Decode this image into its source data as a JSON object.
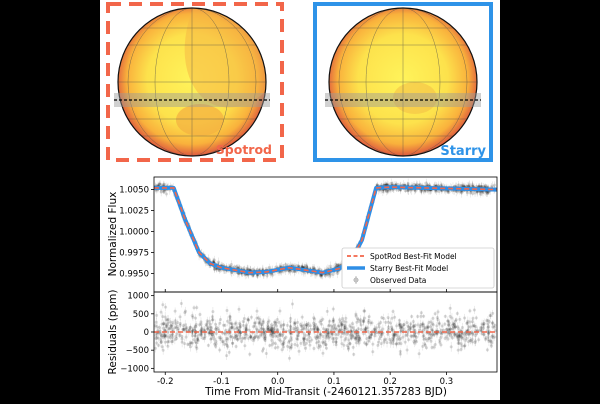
{
  "panels": {
    "spotrod": {
      "label": "Spotrod",
      "frame_color": "#f2664a",
      "frame_style": "dashed"
    },
    "starry": {
      "label": "Starry",
      "frame_color": "#2e93e8",
      "frame_style": "solid"
    }
  },
  "colors": {
    "spotrod_model": "#f2664a",
    "starry_model": "#2e8ee6",
    "observed": "#000000",
    "zero_line": "#f2664a"
  },
  "chart_data": [
    {
      "type": "line",
      "xlabel": "",
      "ylabel": "Normalized Flux",
      "xlim": [
        -0.22,
        0.39
      ],
      "ylim": [
        0.9928,
        1.0065
      ],
      "x_ticks": [
        -0.2,
        -0.1,
        0.0,
        0.1,
        0.2,
        0.3
      ],
      "y_ticks": [
        0.995,
        0.9975,
        1.0,
        1.0025,
        1.005
      ],
      "y_tick_labels": [
        "0.9950",
        "0.9975",
        "1.0000",
        "1.0025",
        "1.0050"
      ],
      "legend": {
        "position": "lower-right",
        "entries": [
          "SpotRod Best-Fit Model",
          "Starry Best-Fit Model",
          "Observed Data"
        ]
      },
      "series": [
        {
          "name": "SpotRod Best-Fit Model",
          "style": "dashed",
          "x": [
            -0.22,
            -0.185,
            -0.165,
            -0.14,
            -0.12,
            -0.1,
            -0.05,
            -0.02,
            0.02,
            0.04,
            0.08,
            0.11,
            0.13,
            0.15,
            0.175,
            0.2,
            0.39
          ],
          "y": [
            1.0052,
            1.0052,
            1.0015,
            0.9975,
            0.9962,
            0.9957,
            0.9951,
            0.9952,
            0.9957,
            0.9955,
            0.9951,
            0.9956,
            0.9965,
            0.999,
            1.0052,
            1.0053,
            1.005
          ]
        },
        {
          "name": "Starry Best-Fit Model",
          "style": "solid",
          "x": [
            -0.22,
            -0.185,
            -0.165,
            -0.14,
            -0.12,
            -0.1,
            -0.05,
            -0.02,
            0.02,
            0.04,
            0.08,
            0.11,
            0.13,
            0.15,
            0.175,
            0.2,
            0.39
          ],
          "y": [
            1.0052,
            1.0052,
            1.0015,
            0.9975,
            0.9962,
            0.9957,
            0.9951,
            0.9952,
            0.9957,
            0.9955,
            0.9951,
            0.9956,
            0.9965,
            0.999,
            1.0052,
            1.0053,
            1.005
          ]
        },
        {
          "name": "Observed Data",
          "style": "errorbar-points",
          "scatter": 0.00022
        }
      ]
    },
    {
      "type": "scatter",
      "xlabel": "Time From Mid-Transit (-2460121.357283 BJD)",
      "ylabel": "Residuals (ppm)",
      "xlim": [
        -0.22,
        0.39
      ],
      "ylim": [
        -1100,
        1100
      ],
      "x_ticks": [
        -0.2,
        -0.1,
        0.0,
        0.1,
        0.2,
        0.3
      ],
      "x_tick_labels": [
        "-0.2",
        "-0.1",
        "0.0",
        "0.1",
        "0.2",
        "0.3"
      ],
      "y_ticks": [
        1000,
        500,
        0,
        -500,
        -1000
      ],
      "y_tick_labels": [
        "1000",
        "500",
        "0",
        "−500",
        "−1000"
      ],
      "zero_line": 0,
      "residual_std_ppm": 230
    }
  ]
}
